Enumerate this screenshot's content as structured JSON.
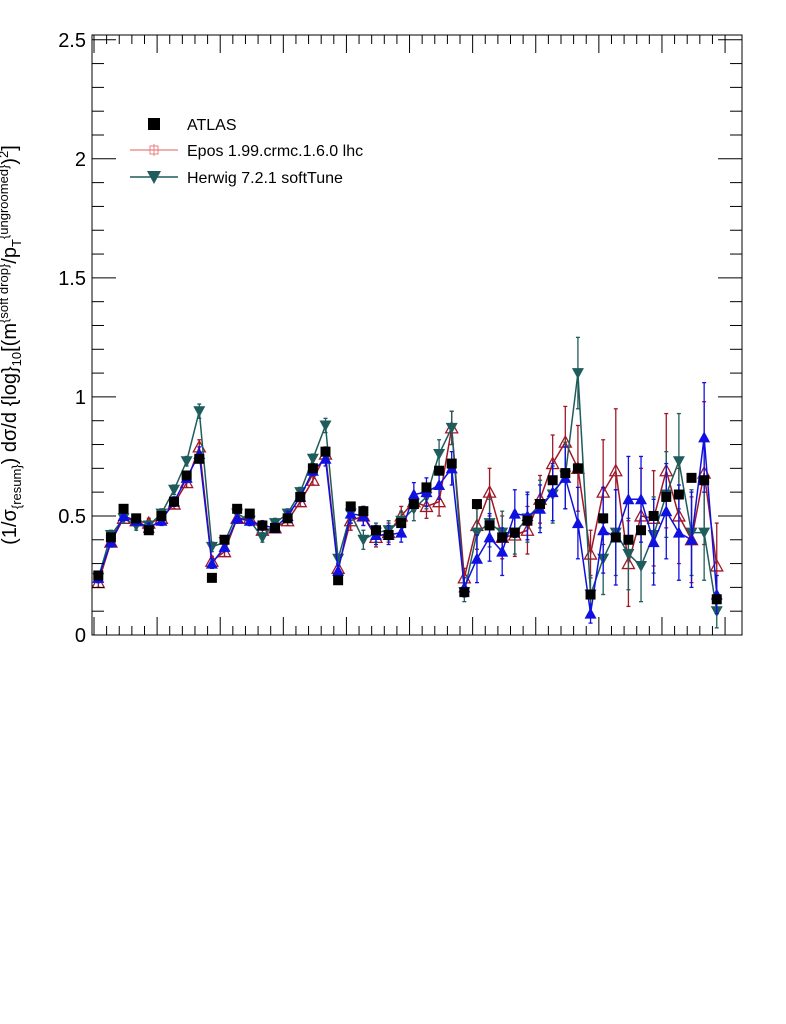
{
  "chart_data": {
    "type": "scatter",
    "title": "",
    "xlabel": "",
    "ylabel": "(1/σ_{resum}) dσ/d {log}_{10}[(m^{soft drop}/p_T^{ungroomed})^2]",
    "ylabel_parts": {
      "p1": "(1/σ",
      "s1": "{resum}",
      "p2": ") dσ/d {log}",
      "s2": "10",
      "p3": "[(m",
      "s3": "{soft drop}",
      "p4": "/p",
      "s4": "T",
      "s5": "{ungroomed}",
      "p5": ")",
      "s6": "2",
      "p6": "]"
    },
    "ylim": [
      0,
      2.52
    ],
    "xlim": [
      -0.5,
      51.0
    ],
    "yticks": [
      0,
      0.5,
      1,
      1.5,
      2,
      2.5
    ],
    "ytick_labels": [
      "0",
      "0.5",
      "1",
      "1.5",
      "2",
      "2.5"
    ],
    "legend": {
      "position": "top-left",
      "entries": [
        "ATLAS",
        "Epos 1.99.crmc.1.6.0 lhc",
        "Herwig 7.2.1 softTune"
      ]
    },
    "series": [
      {
        "name": "ATLAS",
        "color": "#000000",
        "marker": "square",
        "x": [
          0,
          1,
          2,
          3,
          4,
          5,
          6,
          7,
          8,
          9,
          10,
          11,
          12,
          13,
          14,
          15,
          16,
          17,
          18,
          19,
          20,
          21,
          22,
          23,
          24,
          25,
          26,
          27,
          28,
          29,
          30,
          31,
          32,
          33,
          34,
          35,
          36,
          37,
          38,
          39,
          40,
          41,
          42,
          43,
          44,
          45,
          46,
          47,
          48,
          49
        ],
        "values": [
          0.25,
          0.41,
          0.53,
          0.49,
          0.44,
          0.5,
          0.56,
          0.67,
          0.74,
          0.24,
          0.4,
          0.53,
          0.51,
          0.46,
          0.45,
          0.49,
          0.58,
          0.7,
          0.77,
          0.23,
          0.54,
          0.52,
          0.44,
          0.42,
          0.47,
          0.55,
          0.62,
          0.69,
          0.72,
          0.18,
          0.55,
          0.46,
          0.41,
          0.43,
          0.48,
          0.55,
          0.65,
          0.68,
          0.7,
          0.17,
          0.49,
          0.41,
          0.4,
          0.44,
          0.5,
          0.58,
          0.59,
          0.66,
          0.65,
          0.15
        ]
      },
      {
        "name": "Epos 1.99.crmc.1.6.0 lhc",
        "color": "#a01828",
        "marker": "open-triangle",
        "x": [
          0,
          1,
          2,
          3,
          4,
          5,
          6,
          7,
          8,
          9,
          10,
          11,
          12,
          13,
          14,
          15,
          16,
          17,
          18,
          19,
          20,
          21,
          22,
          23,
          24,
          25,
          26,
          27,
          28,
          29,
          30,
          31,
          32,
          33,
          34,
          35,
          36,
          37,
          38,
          39,
          40,
          41,
          42,
          43,
          44,
          45,
          46,
          47,
          48,
          49
        ],
        "values": [
          0.22,
          0.39,
          0.49,
          0.48,
          0.47,
          0.49,
          0.55,
          0.64,
          0.79,
          0.31,
          0.35,
          0.49,
          0.49,
          0.44,
          0.45,
          0.48,
          0.56,
          0.65,
          0.76,
          0.28,
          0.48,
          0.5,
          0.41,
          0.43,
          0.5,
          0.56,
          0.54,
          0.56,
          0.87,
          0.24,
          0.46,
          0.6,
          0.41,
          0.42,
          0.44,
          0.57,
          0.72,
          0.81,
          0.7,
          0.34,
          0.6,
          0.69,
          0.3,
          0.5,
          0.49,
          0.69,
          0.5,
          0.4,
          0.68,
          0.29
        ],
        "errors": [
          0.02,
          0.02,
          0.02,
          0.02,
          0.02,
          0.02,
          0.02,
          0.02,
          0.03,
          0.02,
          0.02,
          0.02,
          0.02,
          0.02,
          0.02,
          0.02,
          0.02,
          0.02,
          0.03,
          0.02,
          0.04,
          0.04,
          0.04,
          0.04,
          0.04,
          0.04,
          0.05,
          0.06,
          0.07,
          0.04,
          0.1,
          0.1,
          0.09,
          0.09,
          0.1,
          0.1,
          0.12,
          0.15,
          0.18,
          0.1,
          0.22,
          0.26,
          0.18,
          0.2,
          0.2,
          0.24,
          0.2,
          0.18,
          0.3,
          0.18
        ]
      },
      {
        "name": "Herwig 7.2.1 softTune",
        "color": "#1f5c5c",
        "marker": "filled-triangle-down",
        "x": [
          0,
          1,
          2,
          3,
          4,
          5,
          6,
          7,
          8,
          9,
          10,
          11,
          12,
          13,
          14,
          15,
          16,
          17,
          18,
          19,
          20,
          21,
          22,
          23,
          24,
          25,
          26,
          27,
          28,
          29,
          30,
          31,
          32,
          33,
          34,
          35,
          36,
          37,
          38,
          39,
          40,
          41,
          42,
          43,
          44,
          45,
          46,
          47,
          48,
          49
        ],
        "values": [
          0.24,
          0.42,
          0.49,
          0.46,
          0.46,
          0.51,
          0.61,
          0.73,
          0.94,
          0.37,
          0.39,
          0.51,
          0.48,
          0.41,
          0.47,
          0.51,
          0.6,
          0.74,
          0.88,
          0.32,
          0.51,
          0.4,
          0.43,
          0.44,
          0.48,
          0.53,
          0.58,
          0.76,
          0.87,
          0.18,
          0.43,
          0.47,
          0.43,
          0.43,
          0.49,
          0.55,
          0.59,
          0.67,
          1.1,
          0.17,
          0.32,
          0.43,
          0.34,
          0.29,
          0.42,
          0.59,
          0.73,
          0.43,
          0.43,
          0.1
        ],
        "errors": [
          0.02,
          0.02,
          0.02,
          0.02,
          0.02,
          0.02,
          0.02,
          0.02,
          0.03,
          0.02,
          0.02,
          0.02,
          0.02,
          0.02,
          0.02,
          0.02,
          0.02,
          0.02,
          0.03,
          0.02,
          0.04,
          0.04,
          0.04,
          0.04,
          0.04,
          0.05,
          0.05,
          0.06,
          0.07,
          0.04,
          0.1,
          0.1,
          0.09,
          0.09,
          0.1,
          0.1,
          0.12,
          0.14,
          0.15,
          0.08,
          0.15,
          0.18,
          0.15,
          0.15,
          0.16,
          0.18,
          0.2,
          0.18,
          0.2,
          0.07
        ]
      },
      {
        "name": "",
        "color": "#1010e0",
        "marker": "filled-triangle-up",
        "x": [
          0,
          1,
          2,
          3,
          4,
          5,
          6,
          7,
          8,
          9,
          10,
          11,
          12,
          13,
          14,
          15,
          16,
          17,
          18,
          19,
          20,
          21,
          22,
          23,
          24,
          25,
          26,
          27,
          28,
          29,
          30,
          31,
          32,
          33,
          34,
          35,
          36,
          37,
          38,
          39,
          40,
          41,
          42,
          43,
          44,
          45,
          46,
          47,
          48,
          49
        ],
        "values": [
          0.24,
          0.39,
          0.5,
          0.48,
          0.45,
          0.48,
          0.56,
          0.66,
          0.76,
          0.3,
          0.37,
          0.49,
          0.48,
          0.46,
          0.45,
          0.5,
          0.58,
          0.69,
          0.74,
          0.27,
          0.51,
          0.5,
          0.42,
          0.42,
          0.43,
          0.59,
          0.6,
          0.63,
          0.7,
          0.2,
          0.32,
          0.41,
          0.35,
          0.51,
          0.5,
          0.53,
          0.6,
          0.66,
          0.47,
          0.09,
          0.44,
          0.41,
          0.57,
          0.57,
          0.39,
          0.52,
          0.43,
          0.4,
          0.83,
          0.17
        ],
        "errors": [
          0.02,
          0.02,
          0.02,
          0.02,
          0.02,
          0.02,
          0.02,
          0.02,
          0.03,
          0.02,
          0.02,
          0.02,
          0.02,
          0.02,
          0.02,
          0.02,
          0.02,
          0.02,
          0.03,
          0.02,
          0.04,
          0.04,
          0.04,
          0.04,
          0.04,
          0.05,
          0.06,
          0.06,
          0.07,
          0.04,
          0.1,
          0.1,
          0.1,
          0.1,
          0.1,
          0.1,
          0.12,
          0.13,
          0.15,
          0.04,
          0.18,
          0.2,
          0.18,
          0.18,
          0.18,
          0.2,
          0.2,
          0.2,
          0.23,
          0.08
        ]
      }
    ]
  }
}
